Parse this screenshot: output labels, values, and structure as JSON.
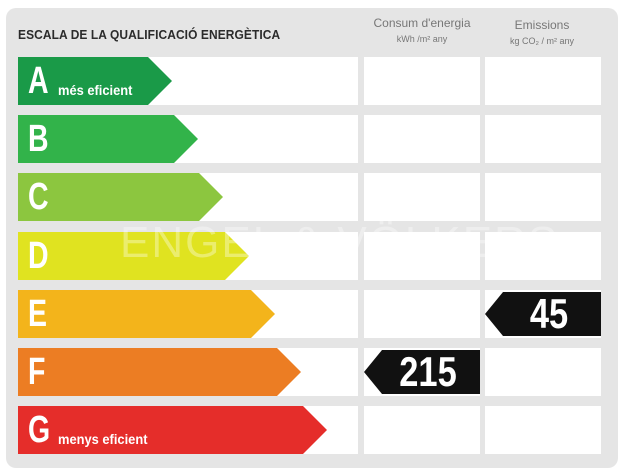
{
  "title": "ESCALA DE LA QUALIFICACIÓ ENERGÈTICA",
  "columns": {
    "consum": {
      "label": "Consum d'energia",
      "unit": "kWh /m² any"
    },
    "emissions": {
      "label": "Emissions",
      "unit": "kg CO₂ / m² any"
    }
  },
  "watermark": "ENGEL & VÖLKERS",
  "ratings": [
    {
      "letter": "A",
      "sublabel": "més eficient",
      "color": "#1a9a48"
    },
    {
      "letter": "B",
      "sublabel": "",
      "color": "#32b34a"
    },
    {
      "letter": "C",
      "sublabel": "",
      "color": "#8cc63f"
    },
    {
      "letter": "D",
      "sublabel": "",
      "color": "#e0e320"
    },
    {
      "letter": "E",
      "sublabel": "",
      "color": "#f3b41b"
    },
    {
      "letter": "F",
      "sublabel": "",
      "color": "#ec7d23"
    },
    {
      "letter": "G",
      "sublabel": "menys eficient",
      "color": "#e52d2a"
    }
  ],
  "consum_value": {
    "rating": "F",
    "value": "215"
  },
  "emissions_value": {
    "rating": "E",
    "value": "45"
  }
}
